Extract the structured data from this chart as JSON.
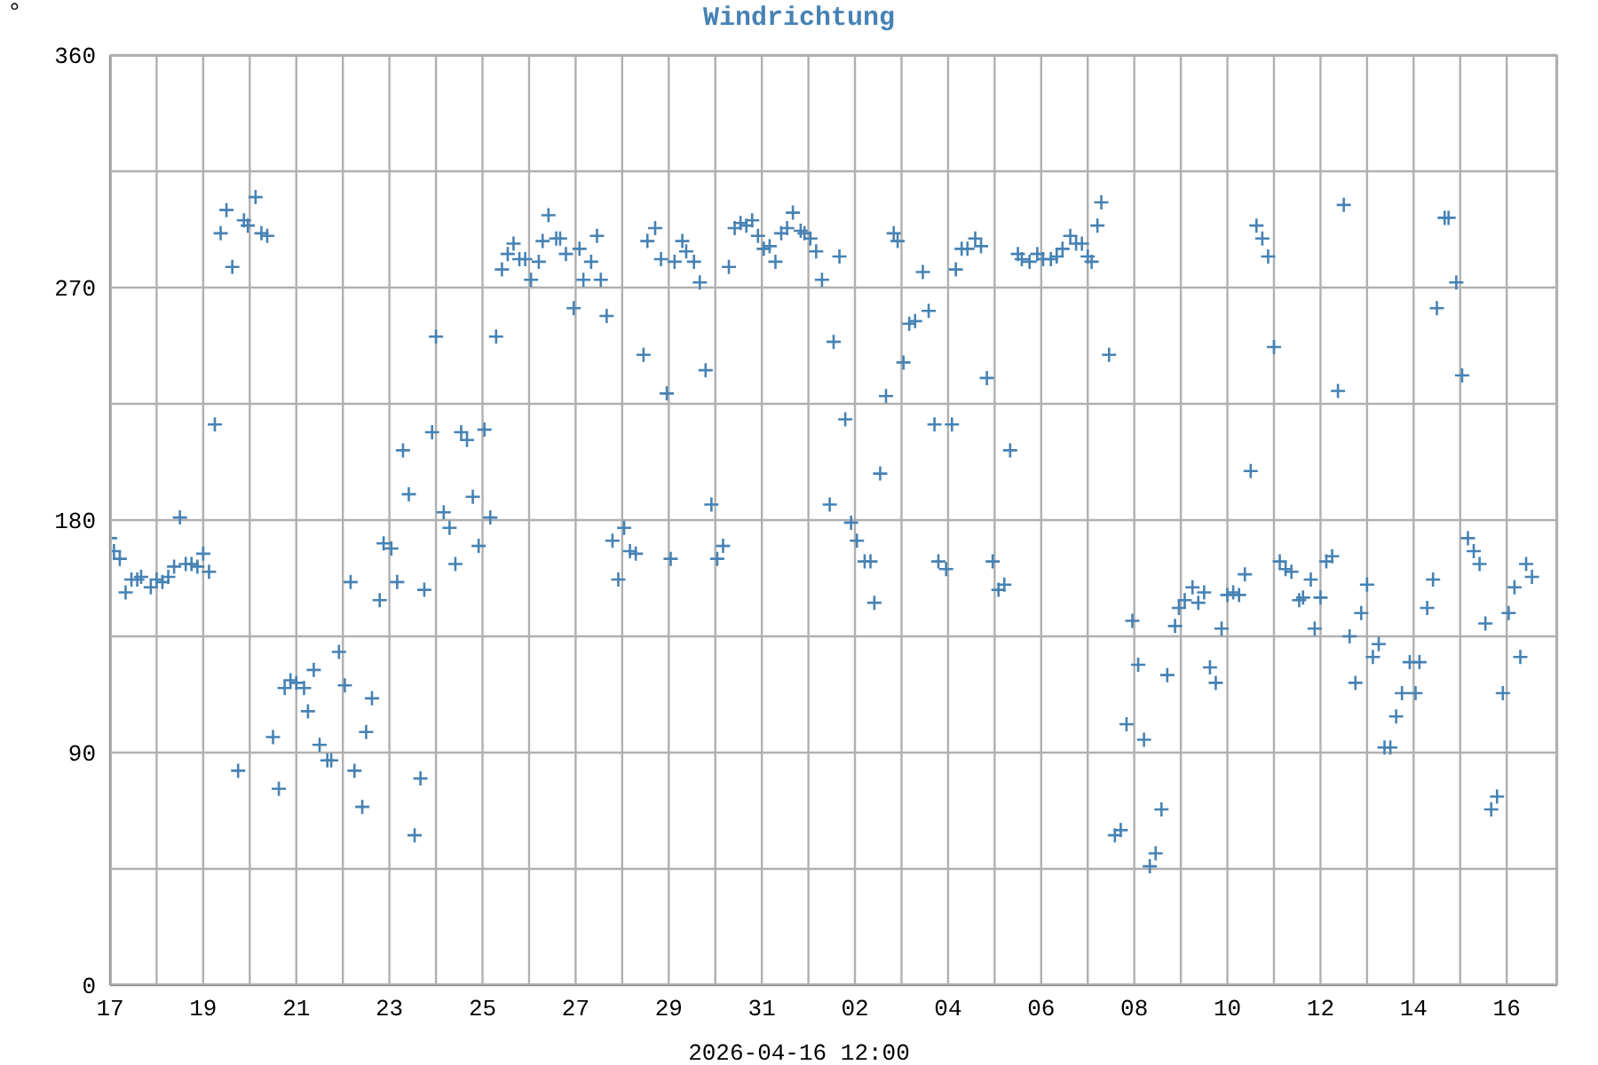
{
  "chart_data": {
    "type": "scatter",
    "title": "Windrichtung",
    "xlabel": "2026-04-16 12:00",
    "ylabel": "°",
    "x": [
      "2026-03-17T00:00",
      "2026-03-17T02:00",
      "2026-03-17T05:00",
      "2026-03-17T08:00",
      "2026-03-17T11:00",
      "2026-03-17T14:00",
      "2026-03-17T16:00",
      "2026-03-17T21:00",
      "2026-03-18T00:00",
      "2026-03-18T03:00",
      "2026-03-18T06:00",
      "2026-03-18T09:00",
      "2026-03-18T12:00",
      "2026-03-18T15:00",
      "2026-03-18T18:00",
      "2026-03-18T21:00",
      "2026-03-19T00:00",
      "2026-03-19T03:00",
      "2026-03-19T06:00",
      "2026-03-19T09:00",
      "2026-03-19T12:00",
      "2026-03-19T15:00",
      "2026-03-19T18:00",
      "2026-03-19T21:00",
      "2026-03-19T23:00",
      "2026-03-20T03:00",
      "2026-03-20T06:00",
      "2026-03-20T09:00",
      "2026-03-20T12:00",
      "2026-03-20T15:00",
      "2026-03-20T18:00",
      "2026-03-20T21:00",
      "2026-03-21T00:00",
      "2026-03-21T04:00",
      "2026-03-21T06:00",
      "2026-03-21T09:00",
      "2026-03-21T12:00",
      "2026-03-21T16:00",
      "2026-03-21T18:00",
      "2026-03-21T22:00",
      "2026-03-22T01:00",
      "2026-03-22T04:00",
      "2026-03-22T06:00",
      "2026-03-22T10:00",
      "2026-03-22T12:00",
      "2026-03-22T15:00",
      "2026-03-22T19:00",
      "2026-03-22T21:00",
      "2026-03-23T01:00",
      "2026-03-23T04:00",
      "2026-03-23T07:00",
      "2026-03-23T10:00",
      "2026-03-23T13:00",
      "2026-03-23T16:00",
      "2026-03-23T18:00",
      "2026-03-23T22:00",
      "2026-03-24T00:00",
      "2026-03-24T04:00",
      "2026-03-24T07:00",
      "2026-03-24T10:00",
      "2026-03-24T13:00",
      "2026-03-24T16:00",
      "2026-03-24T19:00",
      "2026-03-24T22:00",
      "2026-03-25T01:00",
      "2026-03-25T04:00",
      "2026-03-25T07:00",
      "2026-03-25T10:00",
      "2026-03-25T13:00",
      "2026-03-25T16:00",
      "2026-03-25T19:00",
      "2026-03-25T22:00",
      "2026-03-26T01:00",
      "2026-03-26T05:00",
      "2026-03-26T07:00",
      "2026-03-26T10:00",
      "2026-03-26T14:00",
      "2026-03-26T16:00",
      "2026-03-26T19:00",
      "2026-03-26T23:00",
      "2026-03-27T02:00",
      "2026-03-27T04:00",
      "2026-03-27T08:00",
      "2026-03-27T11:00",
      "2026-03-27T13:00",
      "2026-03-27T16:00",
      "2026-03-27T19:00",
      "2026-03-27T22:00",
      "2026-03-28T01:00",
      "2026-03-28T04:00",
      "2026-03-28T07:00",
      "2026-03-28T11:00",
      "2026-03-28T13:00",
      "2026-03-28T17:00",
      "2026-03-28T20:00",
      "2026-03-28T23:00",
      "2026-03-29T01:00",
      "2026-03-29T03:00",
      "2026-03-29T07:00",
      "2026-03-29T09:00",
      "2026-03-29T13:00",
      "2026-03-29T16:00",
      "2026-03-29T19:00",
      "2026-03-29T22:00",
      "2026-03-30T01:00",
      "2026-03-30T04:00",
      "2026-03-30T07:00",
      "2026-03-30T10:00",
      "2026-03-30T13:00",
      "2026-03-30T16:00",
      "2026-03-30T19:00",
      "2026-03-30T22:00",
      "2026-03-31T01:00",
      "2026-03-31T04:00",
      "2026-03-31T07:00",
      "2026-03-31T10:00",
      "2026-03-31T13:00",
      "2026-03-31T16:00",
      "2026-03-31T20:00",
      "2026-03-31T22:00",
      "2026-04-01T01:00",
      "2026-04-01T04:00",
      "2026-04-01T07:00",
      "2026-04-01T11:00",
      "2026-04-01T13:00",
      "2026-04-01T16:00",
      "2026-04-01T19:00",
      "2026-04-01T22:00",
      "2026-04-02T01:00",
      "2026-04-02T05:00",
      "2026-04-02T08:00",
      "2026-04-02T10:00",
      "2026-04-02T13:00",
      "2026-04-02T16:00",
      "2026-04-02T20:00",
      "2026-04-02T22:00",
      "2026-04-03T01:00",
      "2026-04-03T04:00",
      "2026-04-03T07:00",
      "2026-04-03T11:00",
      "2026-04-03T14:00",
      "2026-04-03T17:00",
      "2026-04-03T19:00",
      "2026-04-03T23:00",
      "2026-04-04T02:00",
      "2026-04-04T04:00",
      "2026-04-04T07:00",
      "2026-04-04T10:00",
      "2026-04-04T14:00",
      "2026-04-04T17:00",
      "2026-04-04T20:00",
      "2026-04-04T23:00",
      "2026-04-05T02:00",
      "2026-04-05T05:00",
      "2026-04-05T08:00",
      "2026-04-05T12:00",
      "2026-04-05T14:00",
      "2026-04-05T18:00",
      "2026-04-05T22:00",
      "2026-04-06T01:00",
      "2026-04-06T05:00",
      "2026-04-06T08:00",
      "2026-04-06T11:00",
      "2026-04-06T15:00",
      "2026-04-06T18:00",
      "2026-04-06T21:00",
      "2026-04-07T00:00",
      "2026-04-07T02:00",
      "2026-04-07T05:00",
      "2026-04-07T07:00",
      "2026-04-07T11:00",
      "2026-04-07T14:00",
      "2026-04-07T17:00",
      "2026-04-07T20:00",
      "2026-04-07T23:00",
      "2026-04-08T02:00",
      "2026-04-08T05:00",
      "2026-04-08T08:00",
      "2026-04-08T11:00",
      "2026-04-08T14:00",
      "2026-04-08T17:00",
      "2026-04-08T21:00",
      "2026-04-08T23:00",
      "2026-04-09T02:00",
      "2026-04-09T06:00",
      "2026-04-09T09:00",
      "2026-04-09T12:00",
      "2026-04-09T15:00",
      "2026-04-09T18:00",
      "2026-04-09T21:00",
      "2026-04-10T00:00",
      "2026-04-10T03:00",
      "2026-04-10T06:00",
      "2026-04-10T09:00",
      "2026-04-10T12:00",
      "2026-04-10T15:00",
      "2026-04-10T18:00",
      "2026-04-10T21:00",
      "2026-04-11T00:00",
      "2026-04-11T03:00",
      "2026-04-11T06:00",
      "2026-04-11T09:00",
      "2026-04-11T13:00",
      "2026-04-11T15:00",
      "2026-04-11T19:00",
      "2026-04-11T21:00",
      "2026-04-12T00:00",
      "2026-04-12T03:00",
      "2026-04-12T06:00",
      "2026-04-12T09:00",
      "2026-04-12T12:00",
      "2026-04-12T15:00",
      "2026-04-12T18:00",
      "2026-04-12T21:00",
      "2026-04-13T00:00",
      "2026-04-13T03:00",
      "2026-04-13T06:00",
      "2026-04-13T09:00",
      "2026-04-13T12:00",
      "2026-04-13T15:00",
      "2026-04-13T18:00",
      "2026-04-13T22:00",
      "2026-04-14T01:00",
      "2026-04-14T03:00",
      "2026-04-14T07:00",
      "2026-04-14T10:00",
      "2026-04-14T12:00",
      "2026-04-14T16:00",
      "2026-04-14T18:00",
      "2026-04-14T22:00",
      "2026-04-15T01:00",
      "2026-04-15T04:00",
      "2026-04-15T07:00",
      "2026-04-15T10:00",
      "2026-04-15T13:00",
      "2026-04-15T16:00",
      "2026-04-15T19:00",
      "2026-04-15T22:00",
      "2026-04-16T01:00",
      "2026-04-16T04:00",
      "2026-04-16T07:00",
      "2026-04-16T10:00",
      "2026-04-16T13:00"
    ],
    "values": [
      173,
      168,
      165,
      152,
      157,
      157,
      158,
      154,
      157,
      156,
      158,
      162,
      181,
      163,
      163,
      162,
      167,
      160,
      217,
      291,
      300,
      278,
      83,
      296,
      294,
      305,
      291,
      290,
      96,
      76,
      115,
      118,
      117,
      115,
      106,
      122,
      93,
      87,
      87,
      129,
      116,
      156,
      83,
      69,
      98,
      111,
      149,
      171,
      169,
      156,
      207,
      190,
      58,
      80,
      153,
      214,
      251,
      183,
      177,
      163,
      214,
      211,
      189,
      170,
      215,
      181,
      251,
      277,
      283,
      287,
      281,
      281,
      273,
      280,
      288,
      298,
      289,
      289,
      283,
      262,
      285,
      273,
      280,
      290,
      273,
      259,
      172,
      157,
      177,
      168,
      167,
      244,
      288,
      293,
      281,
      229,
      165,
      280,
      288,
      284,
      280,
      272,
      238,
      186,
      165,
      170,
      278,
      293,
      295,
      294,
      296,
      290,
      285,
      286,
      280,
      291,
      293,
      299,
      292,
      291,
      289,
      284,
      273,
      186,
      249,
      282,
      219,
      179,
      172,
      164,
      164,
      148,
      198,
      228,
      291,
      288,
      241,
      256,
      257,
      276,
      261,
      217,
      164,
      161,
      217,
      277,
      285,
      285,
      289,
      286,
      235,
      164,
      153,
      155,
      207,
      283,
      281,
      280,
      283,
      281,
      281,
      282,
      285,
      290,
      287,
      287,
      282,
      280,
      294,
      303,
      244,
      58,
      60,
      101,
      141,
      124,
      95,
      46,
      51,
      68,
      120,
      139,
      146,
      149,
      154,
      148,
      152,
      123,
      117,
      138,
      151,
      152,
      151,
      159,
      199,
      294,
      289,
      282,
      247,
      164,
      161,
      160,
      149,
      150,
      157,
      138,
      150,
      164,
      166,
      230,
      302,
      135,
      117,
      144,
      155,
      127,
      132,
      92,
      92,
      104,
      113,
      125,
      113,
      125,
      146,
      157,
      262,
      297,
      297,
      272,
      236,
      173,
      168,
      163,
      140,
      68,
      73,
      113,
      144,
      154,
      127,
      163,
      158
    ],
    "color": "#4682b4",
    "marker": "cross",
    "xlim": [
      "2026-03-17T00:00",
      "2026-04-17T02:00"
    ],
    "xticks": [
      {
        "value": "2026-03-17",
        "label": "17"
      },
      {
        "value": "2026-03-18",
        "label": null
      },
      {
        "value": "2026-03-19",
        "label": "19"
      },
      {
        "value": "2026-03-20",
        "label": null
      },
      {
        "value": "2026-03-21",
        "label": "21"
      },
      {
        "value": "2026-03-22",
        "label": null
      },
      {
        "value": "2026-03-23",
        "label": "23"
      },
      {
        "value": "2026-03-24",
        "label": null
      },
      {
        "value": "2026-03-25",
        "label": "25"
      },
      {
        "value": "2026-03-26",
        "label": null
      },
      {
        "value": "2026-03-27",
        "label": "27"
      },
      {
        "value": "2026-03-28",
        "label": null
      },
      {
        "value": "2026-03-29",
        "label": "29"
      },
      {
        "value": "2026-03-30",
        "label": null
      },
      {
        "value": "2026-03-31",
        "label": "31"
      },
      {
        "value": "2026-04-01",
        "label": null
      },
      {
        "value": "2026-04-02",
        "label": "02"
      },
      {
        "value": "2026-04-03",
        "label": null
      },
      {
        "value": "2026-04-04",
        "label": "04"
      },
      {
        "value": "2026-04-05",
        "label": null
      },
      {
        "value": "2026-04-06",
        "label": "06"
      },
      {
        "value": "2026-04-07",
        "label": null
      },
      {
        "value": "2026-04-08",
        "label": "08"
      },
      {
        "value": "2026-04-09",
        "label": null
      },
      {
        "value": "2026-04-10",
        "label": "10"
      },
      {
        "value": "2026-04-11",
        "label": null
      },
      {
        "value": "2026-04-12",
        "label": "12"
      },
      {
        "value": "2026-04-13",
        "label": null
      },
      {
        "value": "2026-04-14",
        "label": "14"
      },
      {
        "value": "2026-04-15",
        "label": null
      },
      {
        "value": "2026-04-16",
        "label": "16"
      }
    ],
    "ylim": [
      0,
      360
    ],
    "yticks": [
      0,
      {
        "value": 45,
        "label": null
      },
      90,
      {
        "value": 135,
        "label": null
      },
      180,
      {
        "value": 225,
        "label": null
      },
      270,
      {
        "value": 315,
        "label": null
      },
      360
    ],
    "grid": true
  }
}
